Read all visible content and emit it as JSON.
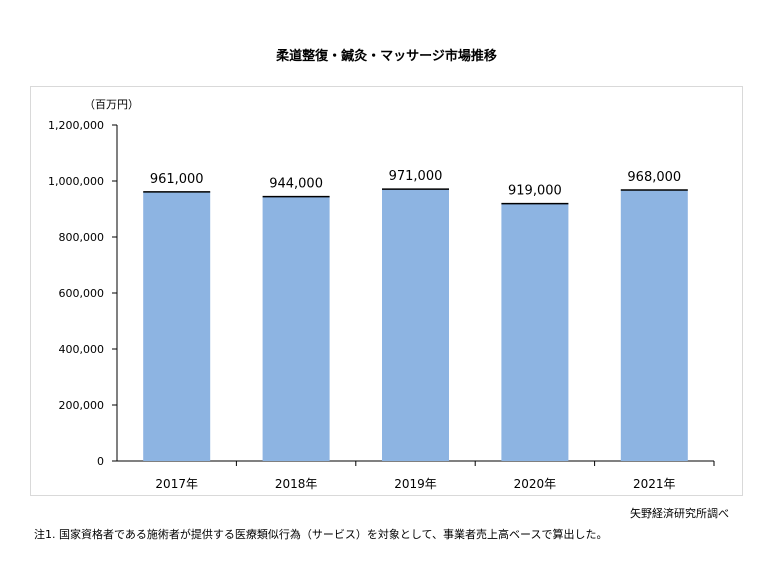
{
  "chart_data": {
    "type": "bar",
    "title": "柔道整復・鍼灸・マッサージ市場推移",
    "unit_label": "（百万円）",
    "categories": [
      "2017年",
      "2018年",
      "2019年",
      "2020年",
      "2021年"
    ],
    "values": [
      961000,
      944000,
      971000,
      919000,
      968000
    ],
    "data_labels": [
      "961,000",
      "944,000",
      "971,000",
      "919,000",
      "968,000"
    ],
    "ylim": [
      0,
      1200000
    ],
    "yticks": [
      0,
      200000,
      400000,
      600000,
      800000,
      1000000,
      1200000
    ],
    "ytick_labels": [
      "0",
      "200,000",
      "400,000",
      "600,000",
      "800,000",
      "1,000,000",
      "1,200,000"
    ],
    "grid": false,
    "bar_color": "#8DB4E2",
    "source": "矢野経済研究所調べ",
    "footnote": "注1. 国家資格者である施術者が提供する医療類似行為（サービス）を対象として、事業者売上高ベースで算出した。"
  }
}
